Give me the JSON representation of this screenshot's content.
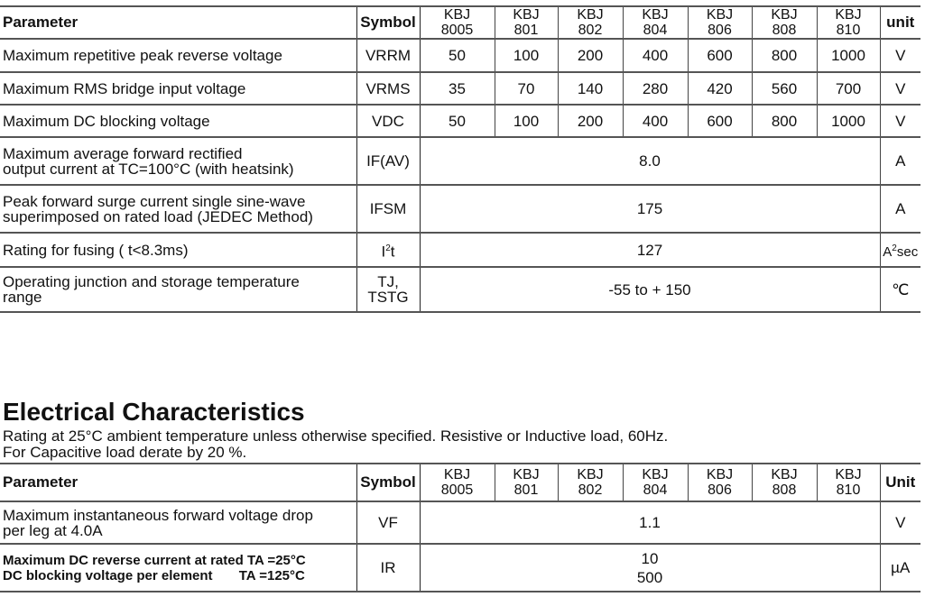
{
  "table1": {
    "headers": {
      "parameter": "Parameter",
      "symbol": "Symbol",
      "models": [
        [
          "KBJ",
          "8005"
        ],
        [
          "KBJ",
          "801"
        ],
        [
          "KBJ",
          "802"
        ],
        [
          "KBJ",
          "804"
        ],
        [
          "KBJ",
          "806"
        ],
        [
          "KBJ",
          "808"
        ],
        [
          "KBJ",
          "810"
        ]
      ],
      "unit": "unit"
    },
    "rows": [
      {
        "param": "Maximum repetitive peak reverse voltage",
        "symbol": "VRRM",
        "values": [
          "50",
          "100",
          "200",
          "400",
          "600",
          "800",
          "1000"
        ],
        "unit": "V"
      },
      {
        "param": "Maximum RMS bridge input voltage",
        "symbol": "VRMS",
        "values": [
          "35",
          "70",
          "140",
          "280",
          "420",
          "560",
          "700"
        ],
        "unit": "V"
      },
      {
        "param": "Maximum DC blocking voltage",
        "symbol": "VDC",
        "values": [
          "50",
          "100",
          "200",
          "400",
          "600",
          "800",
          "1000"
        ],
        "unit": "V"
      },
      {
        "param": "Maximum average forward rectified",
        "param2": "output current at TC=100°C  (with heatsink)",
        "symbol": "IF(AV)",
        "value": "8.0",
        "unit": "A"
      },
      {
        "param": "Peak forward surge current single sine-wave",
        "param2": "superimposed on rated load (JEDEC Method)",
        "symbol": "IFSM",
        "value": "175",
        "unit": "A"
      },
      {
        "param": "Rating for fusing ( t<8.3ms)",
        "symbol": "I",
        "symbol_sup": "2",
        "symbol2": "t",
        "value": "127",
        "unit": "A",
        "unit_sup": "2",
        "unit2": "sec"
      },
      {
        "param": "Operating junction and storage temperature",
        "param2": "range",
        "symbol": "TJ,",
        "symbol2": "TSTG",
        "value": "-55 to + 150",
        "unit": "℃"
      }
    ]
  },
  "section": {
    "title": "Electrical Characteristics",
    "line1": "Rating at 25°C ambient temperature unless otherwise specified. Resistive or Inductive load, 60Hz.",
    "line2": "For Capacitive load derate by 20 %."
  },
  "table2": {
    "headers": {
      "parameter": "Parameter",
      "symbol": "Symbol",
      "unit": "Unit"
    },
    "rows": [
      {
        "param": "Maximum instantaneous forward voltage drop",
        "param2": "per leg at 4.0A",
        "symbol": "VF",
        "value": "1.1",
        "unit": "V"
      },
      {
        "param": "Maximum DC reverse current at rated TA =25°C",
        "param2": "DC blocking voltage per element       TA =125°C",
        "symbol": "IR",
        "value": "10",
        "value2": "500",
        "unit": "µA"
      }
    ]
  }
}
